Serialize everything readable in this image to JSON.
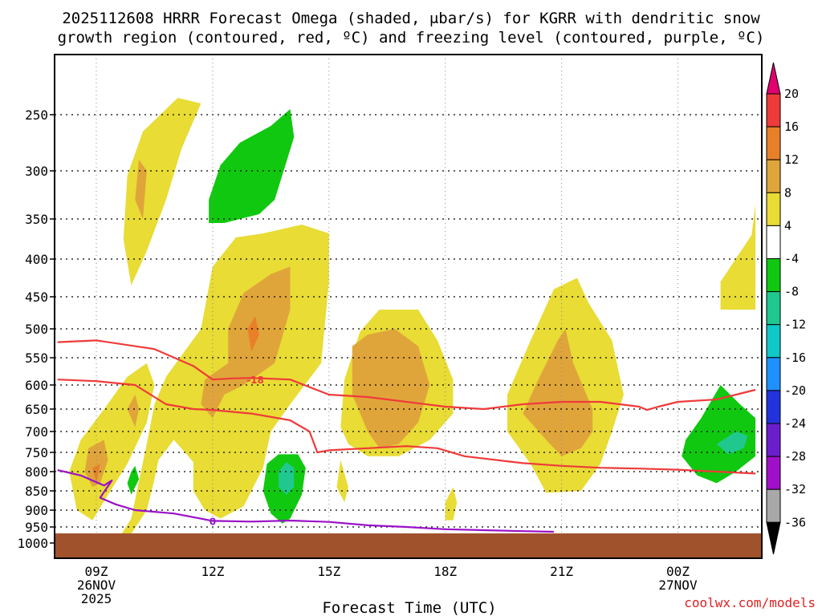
{
  "chart_data": {
    "type": "contour",
    "title_line1": "2025112608 HRRR Forecast Omega (shaded, μbar/s) for KGRR with dendritic snow",
    "title_line2": "growth region (contoured, red, ºC) and freezing level (contoured, purple, ºC)",
    "xlabel": "Forecast Time (UTC)",
    "ylabel": "",
    "x_ticks": [
      {
        "hour": 9,
        "lines": [
          "09Z",
          "26NOV",
          "2025"
        ]
      },
      {
        "hour": 12,
        "lines": [
          "12Z"
        ]
      },
      {
        "hour": 15,
        "lines": [
          "15Z"
        ]
      },
      {
        "hour": 18,
        "lines": [
          "18Z"
        ]
      },
      {
        "hour": 21,
        "lines": [
          "21Z"
        ]
      },
      {
        "hour": 24,
        "lines": [
          "00Z",
          "27NOV"
        ]
      }
    ],
    "xlim_hours": [
      8,
      26
    ],
    "y_ticks": [
      "250",
      "300",
      "350",
      "400",
      "450",
      "500",
      "550",
      "600",
      "650",
      "700",
      "750",
      "800",
      "850",
      "900",
      "950",
      "1000"
    ],
    "y_tick_values": [
      250,
      300,
      350,
      400,
      450,
      500,
      550,
      600,
      650,
      700,
      750,
      800,
      850,
      900,
      950,
      1000
    ],
    "colorbar_ticks": [
      "20",
      "16",
      "12",
      "8",
      "4",
      "-4",
      "-8",
      "-12",
      "-16",
      "-20",
      "-24",
      "-28",
      "-32",
      "-36"
    ],
    "colorbar_colors": [
      "#e0006e",
      "#ef3a3a",
      "#e8802a",
      "#e0a53a",
      "#e8dc35",
      "#ffffff",
      "#10c810",
      "#20c890",
      "#10c8c8",
      "#1e90ff",
      "#2233dd",
      "#6a1ecc",
      "#a010c8",
      "#a8a8a8",
      "#000000"
    ],
    "contour_labels": {
      "dgz": "-18",
      "freezing": "0"
    },
    "omega_colors": {
      "light": "#e8dc35",
      "mid": "#e0a53a",
      "high": "#e8802a",
      "neg1": "#10c810",
      "neg2": "#20c890",
      "neg3": "#10c8c8"
    },
    "omega_regions": [
      {
        "level": "light",
        "pts": [
          [
            9.5,
            1000
          ],
          [
            9.9,
            925
          ],
          [
            10.3,
            730
          ],
          [
            10.5,
            640
          ],
          [
            10.8,
            585
          ],
          [
            11.7,
            500
          ],
          [
            12.0,
            410
          ],
          [
            12.6,
            373
          ],
          [
            13.3,
            368
          ],
          [
            14.3,
            357
          ],
          [
            15.0,
            368
          ],
          [
            15.0,
            430
          ],
          [
            14.8,
            560
          ],
          [
            14.0,
            640
          ],
          [
            13.5,
            700
          ],
          [
            13.3,
            790
          ],
          [
            12.8,
            890
          ],
          [
            12.2,
            925
          ],
          [
            11.8,
            900
          ],
          [
            11.5,
            850
          ],
          [
            11.5,
            775
          ],
          [
            11.0,
            720
          ],
          [
            10.6,
            770
          ],
          [
            10.5,
            820
          ],
          [
            10.3,
            900
          ],
          [
            9.8,
            990
          ]
        ]
      },
      {
        "level": "light",
        "pts": [
          [
            8.5,
            900
          ],
          [
            8.3,
            800
          ],
          [
            8.6,
            720
          ],
          [
            9.2,
            650
          ],
          [
            9.8,
            585
          ],
          [
            10.3,
            560
          ],
          [
            10.5,
            600
          ],
          [
            10.3,
            680
          ],
          [
            9.8,
            780
          ],
          [
            9.3,
            860
          ],
          [
            8.9,
            930
          ]
        ]
      },
      {
        "level": "light",
        "pts": [
          [
            15.3,
            690
          ],
          [
            15.4,
            590
          ],
          [
            15.8,
            505
          ],
          [
            16.3,
            470
          ],
          [
            17.3,
            470
          ],
          [
            17.8,
            520
          ],
          [
            18.2,
            590
          ],
          [
            18.2,
            660
          ],
          [
            17.6,
            720
          ],
          [
            16.8,
            760
          ],
          [
            16.0,
            760
          ],
          [
            15.5,
            730
          ]
        ]
      },
      {
        "level": "light",
        "pts": [
          [
            19.6,
            620
          ],
          [
            20.2,
            520
          ],
          [
            20.8,
            440
          ],
          [
            21.4,
            425
          ],
          [
            21.7,
            460
          ],
          [
            22.3,
            520
          ],
          [
            22.6,
            620
          ],
          [
            22.3,
            700
          ],
          [
            22.0,
            780
          ],
          [
            21.5,
            850
          ],
          [
            20.6,
            855
          ],
          [
            20.2,
            780
          ],
          [
            19.6,
            700
          ]
        ]
      },
      {
        "level": "light",
        "pts": [
          [
            9.8,
            305
          ],
          [
            10.2,
            265
          ],
          [
            11.1,
            235
          ],
          [
            11.7,
            240
          ],
          [
            11.2,
            280
          ],
          [
            10.8,
            330
          ],
          [
            10.3,
            390
          ],
          [
            9.9,
            435
          ],
          [
            9.7,
            375
          ]
        ]
      },
      {
        "level": "light",
        "pts": [
          [
            25.1,
            470
          ],
          [
            25.1,
            430
          ],
          [
            25.9,
            370
          ],
          [
            26.0,
            335
          ],
          [
            26.0,
            470
          ]
        ]
      },
      {
        "level": "light",
        "pts": [
          [
            15.3,
            770
          ],
          [
            15.5,
            840
          ],
          [
            15.4,
            880
          ],
          [
            15.2,
            840
          ]
        ]
      },
      {
        "level": "light",
        "pts": [
          [
            18.0,
            880
          ],
          [
            18.2,
            840
          ],
          [
            18.3,
            880
          ],
          [
            18.2,
            930
          ],
          [
            18.0,
            930
          ]
        ]
      },
      {
        "level": "mid",
        "pts": [
          [
            11.7,
            640
          ],
          [
            11.8,
            590
          ],
          [
            12.4,
            560
          ],
          [
            12.4,
            500
          ],
          [
            12.8,
            445
          ],
          [
            13.5,
            420
          ],
          [
            14.0,
            410
          ],
          [
            14.0,
            470
          ],
          [
            13.6,
            560
          ],
          [
            12.8,
            600
          ],
          [
            12.3,
            620
          ],
          [
            12.0,
            670
          ]
        ]
      },
      {
        "level": "mid",
        "pts": [
          [
            16.0,
            700
          ],
          [
            15.6,
            620
          ],
          [
            15.6,
            530
          ],
          [
            16.0,
            510
          ],
          [
            16.7,
            500
          ],
          [
            17.3,
            530
          ],
          [
            17.6,
            600
          ],
          [
            17.3,
            680
          ],
          [
            16.8,
            730
          ],
          [
            16.3,
            740
          ]
        ]
      },
      {
        "level": "mid",
        "pts": [
          [
            20.0,
            660
          ],
          [
            20.4,
            590
          ],
          [
            20.9,
            520
          ],
          [
            21.1,
            500
          ],
          [
            21.3,
            560
          ],
          [
            21.8,
            650
          ],
          [
            21.8,
            700
          ],
          [
            21.5,
            740
          ],
          [
            21.0,
            760
          ],
          [
            20.6,
            720
          ]
        ]
      },
      {
        "level": "mid",
        "pts": [
          [
            8.7,
            800
          ],
          [
            8.8,
            740
          ],
          [
            9.2,
            720
          ],
          [
            9.3,
            770
          ],
          [
            9.1,
            830
          ],
          [
            8.9,
            840
          ]
        ]
      },
      {
        "level": "mid",
        "pts": [
          [
            9.8,
            650
          ],
          [
            10.0,
            620
          ],
          [
            10.1,
            650
          ],
          [
            10.0,
            690
          ]
        ]
      },
      {
        "level": "mid",
        "pts": [
          [
            10.1,
            290
          ],
          [
            10.3,
            300
          ],
          [
            10.2,
            350
          ],
          [
            10.0,
            330
          ]
        ]
      },
      {
        "level": "high",
        "pts": [
          [
            12.9,
            500
          ],
          [
            13.1,
            480
          ],
          [
            13.2,
            510
          ],
          [
            13.0,
            540
          ]
        ]
      },
      {
        "level": "high",
        "pts": [
          [
            8.9,
            790
          ],
          [
            9.1,
            780
          ],
          [
            9.0,
            830
          ]
        ]
      },
      {
        "level": "neg1",
        "pts": [
          [
            11.9,
            330
          ],
          [
            12.2,
            295
          ],
          [
            12.7,
            275
          ],
          [
            13.5,
            260
          ],
          [
            14.0,
            245
          ],
          [
            14.1,
            270
          ],
          [
            13.6,
            330
          ],
          [
            13.2,
            345
          ],
          [
            12.3,
            355
          ],
          [
            11.9,
            355
          ]
        ]
      },
      {
        "level": "neg1",
        "pts": [
          [
            13.4,
            780
          ],
          [
            13.7,
            755
          ],
          [
            14.2,
            755
          ],
          [
            14.4,
            790
          ],
          [
            14.3,
            860
          ],
          [
            14.0,
            925
          ],
          [
            13.8,
            940
          ],
          [
            13.5,
            910
          ],
          [
            13.3,
            850
          ]
        ]
      },
      {
        "level": "neg1",
        "pts": [
          [
            9.9,
            800
          ],
          [
            10.0,
            785
          ],
          [
            10.1,
            820
          ],
          [
            9.9,
            860
          ],
          [
            9.8,
            830
          ]
        ]
      },
      {
        "level": "neg1",
        "pts": [
          [
            24.2,
            720
          ],
          [
            24.6,
            670
          ],
          [
            25.1,
            600
          ],
          [
            25.6,
            640
          ],
          [
            26.0,
            670
          ],
          [
            26.0,
            760
          ],
          [
            25.5,
            800
          ],
          [
            25.0,
            830
          ],
          [
            24.5,
            810
          ],
          [
            24.1,
            760
          ]
        ]
      },
      {
        "level": "neg2",
        "pts": [
          [
            13.7,
            800
          ],
          [
            13.9,
            775
          ],
          [
            14.1,
            790
          ],
          [
            14.1,
            840
          ],
          [
            13.9,
            860
          ],
          [
            13.7,
            840
          ]
        ]
      },
      {
        "level": "neg2",
        "pts": [
          [
            25.0,
            730
          ],
          [
            25.5,
            700
          ],
          [
            25.8,
            710
          ],
          [
            25.7,
            740
          ],
          [
            25.3,
            755
          ]
        ]
      }
    ],
    "contours": [
      {
        "name": "dgz-upper",
        "color": "#ef3a3a",
        "pts": [
          [
            8.0,
            523
          ],
          [
            9.0,
            520
          ],
          [
            10.5,
            535
          ],
          [
            11.5,
            565
          ],
          [
            12.0,
            590
          ],
          [
            12.5,
            588
          ],
          [
            13.0,
            587
          ],
          [
            14.0,
            590
          ],
          [
            15.0,
            620
          ],
          [
            16.0,
            625
          ],
          [
            17.0,
            635
          ],
          [
            18.0,
            645
          ],
          [
            19.0,
            650
          ],
          [
            20.0,
            640
          ],
          [
            21.0,
            635
          ],
          [
            22.0,
            635
          ],
          [
            23.0,
            645
          ],
          [
            23.2,
            652
          ],
          [
            23.5,
            645
          ],
          [
            24.0,
            635
          ],
          [
            25.0,
            630
          ],
          [
            26.0,
            610
          ]
        ]
      },
      {
        "name": "dgz-lower",
        "color": "#ef3a3a",
        "pts": [
          [
            8.0,
            590
          ],
          [
            9.0,
            593
          ],
          [
            10.0,
            600
          ],
          [
            10.8,
            640
          ],
          [
            11.5,
            650
          ],
          [
            12.0,
            652
          ],
          [
            13.0,
            660
          ],
          [
            14.0,
            675
          ],
          [
            14.5,
            700
          ],
          [
            14.7,
            750
          ],
          [
            15.0,
            745
          ],
          [
            16.0,
            740
          ],
          [
            17.0,
            735
          ],
          [
            17.8,
            740
          ],
          [
            18.5,
            760
          ],
          [
            20.0,
            778
          ],
          [
            21.0,
            785
          ],
          [
            22.0,
            790
          ],
          [
            23.0,
            792
          ],
          [
            24.0,
            795
          ],
          [
            25.0,
            800
          ],
          [
            26.0,
            805
          ]
        ]
      },
      {
        "name": "freezing-level",
        "color": "#9a10c8",
        "pts": [
          [
            8.0,
            796
          ],
          [
            8.6,
            810
          ],
          [
            9.2,
            836
          ],
          [
            9.4,
            823
          ],
          [
            9.1,
            868
          ],
          [
            9.5,
            885
          ],
          [
            10.0,
            900
          ],
          [
            11.0,
            910
          ],
          [
            12.0,
            932
          ],
          [
            13.0,
            934
          ],
          [
            14.0,
            931
          ],
          [
            15.0,
            935
          ],
          [
            16.0,
            945
          ],
          [
            17.0,
            950
          ],
          [
            18.0,
            957
          ],
          [
            19.0,
            960
          ],
          [
            20.0,
            963
          ],
          [
            20.8,
            965
          ]
        ]
      }
    ],
    "ground_color": "#a0522d",
    "ground_top_hpa": 970
  },
  "credit": "coolwx.com/models"
}
